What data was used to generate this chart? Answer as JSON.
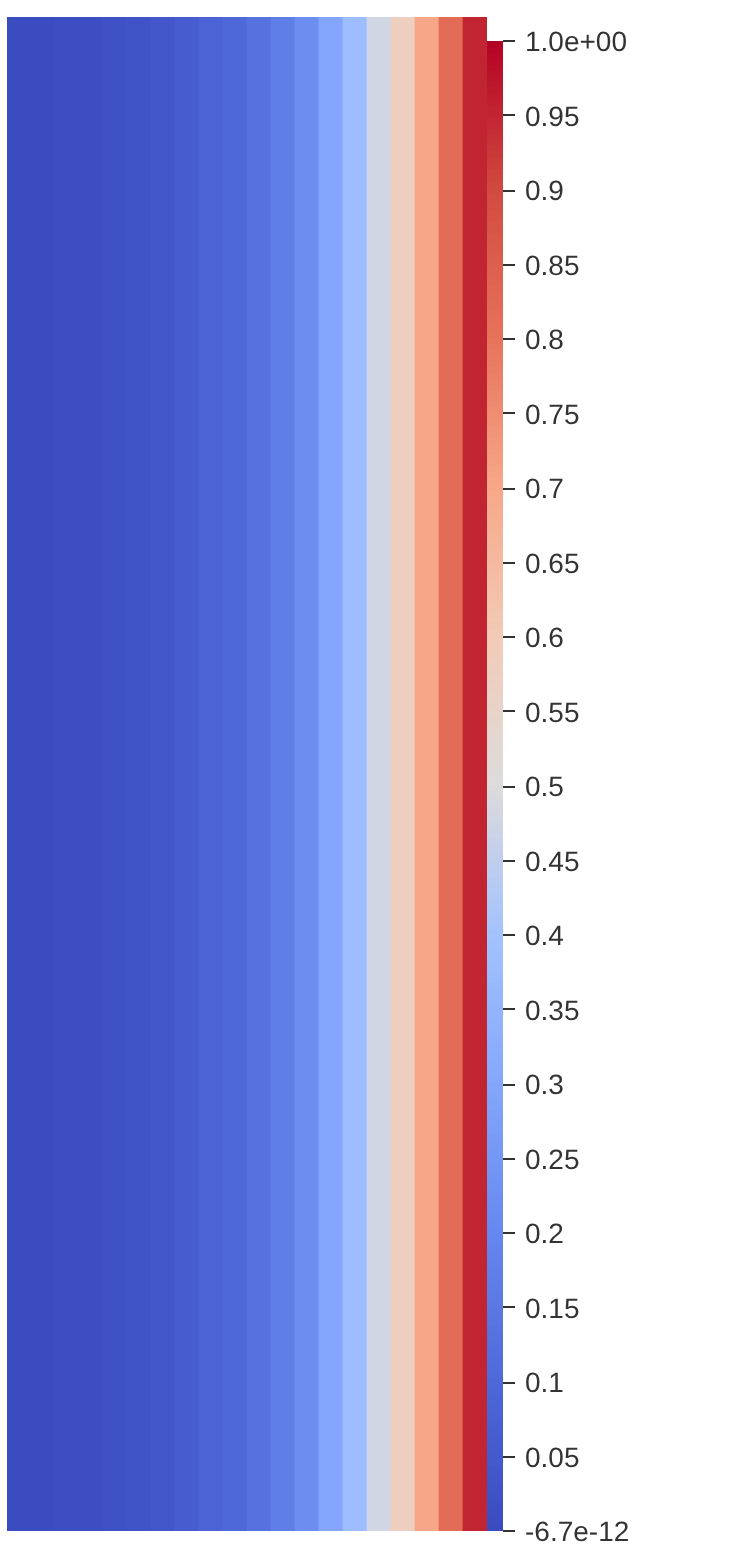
{
  "chart_data": {
    "type": "heatmap",
    "categories": [
      null,
      null,
      null,
      null,
      null,
      null,
      null,
      null,
      null,
      null,
      null,
      null,
      null,
      null,
      null,
      null,
      null,
      null,
      null,
      null
    ],
    "y_categories": [
      null
    ],
    "cells": [
      [
        0.0,
        0.0,
        0.01,
        0.01,
        0.02,
        0.03,
        0.04,
        0.06,
        0.08,
        0.1,
        0.13,
        0.17,
        0.22,
        0.3,
        0.38,
        0.48,
        0.58,
        0.7,
        0.82,
        0.95
      ]
    ],
    "clim": [
      -6.7e-12,
      1
    ],
    "cticks": [
      -6.7e-12,
      0.05,
      0.1,
      0.15,
      0.2,
      0.25,
      0.3,
      0.35,
      0.4,
      0.45,
      0.5,
      0.55,
      0.6,
      0.65,
      0.7,
      0.75,
      0.8,
      0.85,
      0.9,
      0.95,
      {
        "value": 1,
        "label": "1.0e+00"
      }
    ],
    "tick_labels": false
  }
}
